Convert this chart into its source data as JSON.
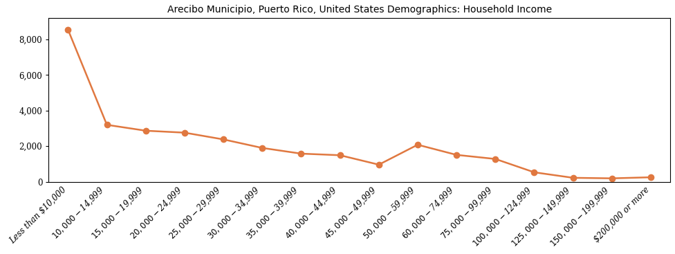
{
  "title": "Arecibo Municipio, Puerto Rico, United States Demographics: Household Income",
  "categories": [
    "Less than $10,000",
    "$10,000 - $14,999",
    "$15,000 - $19,999",
    "$20,000 - $24,999",
    "$25,000 - $29,999",
    "$30,000 - $34,999",
    "$35,000 - $39,999",
    "$40,000 - $44,999",
    "$45,000 - $49,999",
    "$50,000 - $59,999",
    "$60,000 - $74,999",
    "$75,000 - $99,999",
    "$100,000 - $124,999",
    "$125,000 - $149,999",
    "$150,000 - $199,999",
    "$200,000 or more"
  ],
  "values": [
    8550,
    3200,
    2870,
    2760,
    2380,
    1900,
    1580,
    1490,
    960,
    2080,
    1510,
    1280,
    530,
    220,
    190,
    250
  ],
  "line_color": "#E07840",
  "marker": "o",
  "marker_size": 6,
  "linewidth": 1.8,
  "ylim": [
    0,
    9200
  ],
  "yticks": [
    0,
    2000,
    4000,
    6000,
    8000
  ],
  "title_fontsize": 10,
  "tick_fontsize": 8.5,
  "background_color": "#ffffff",
  "figure_width": 9.76,
  "figure_height": 3.67,
  "dpi": 100
}
